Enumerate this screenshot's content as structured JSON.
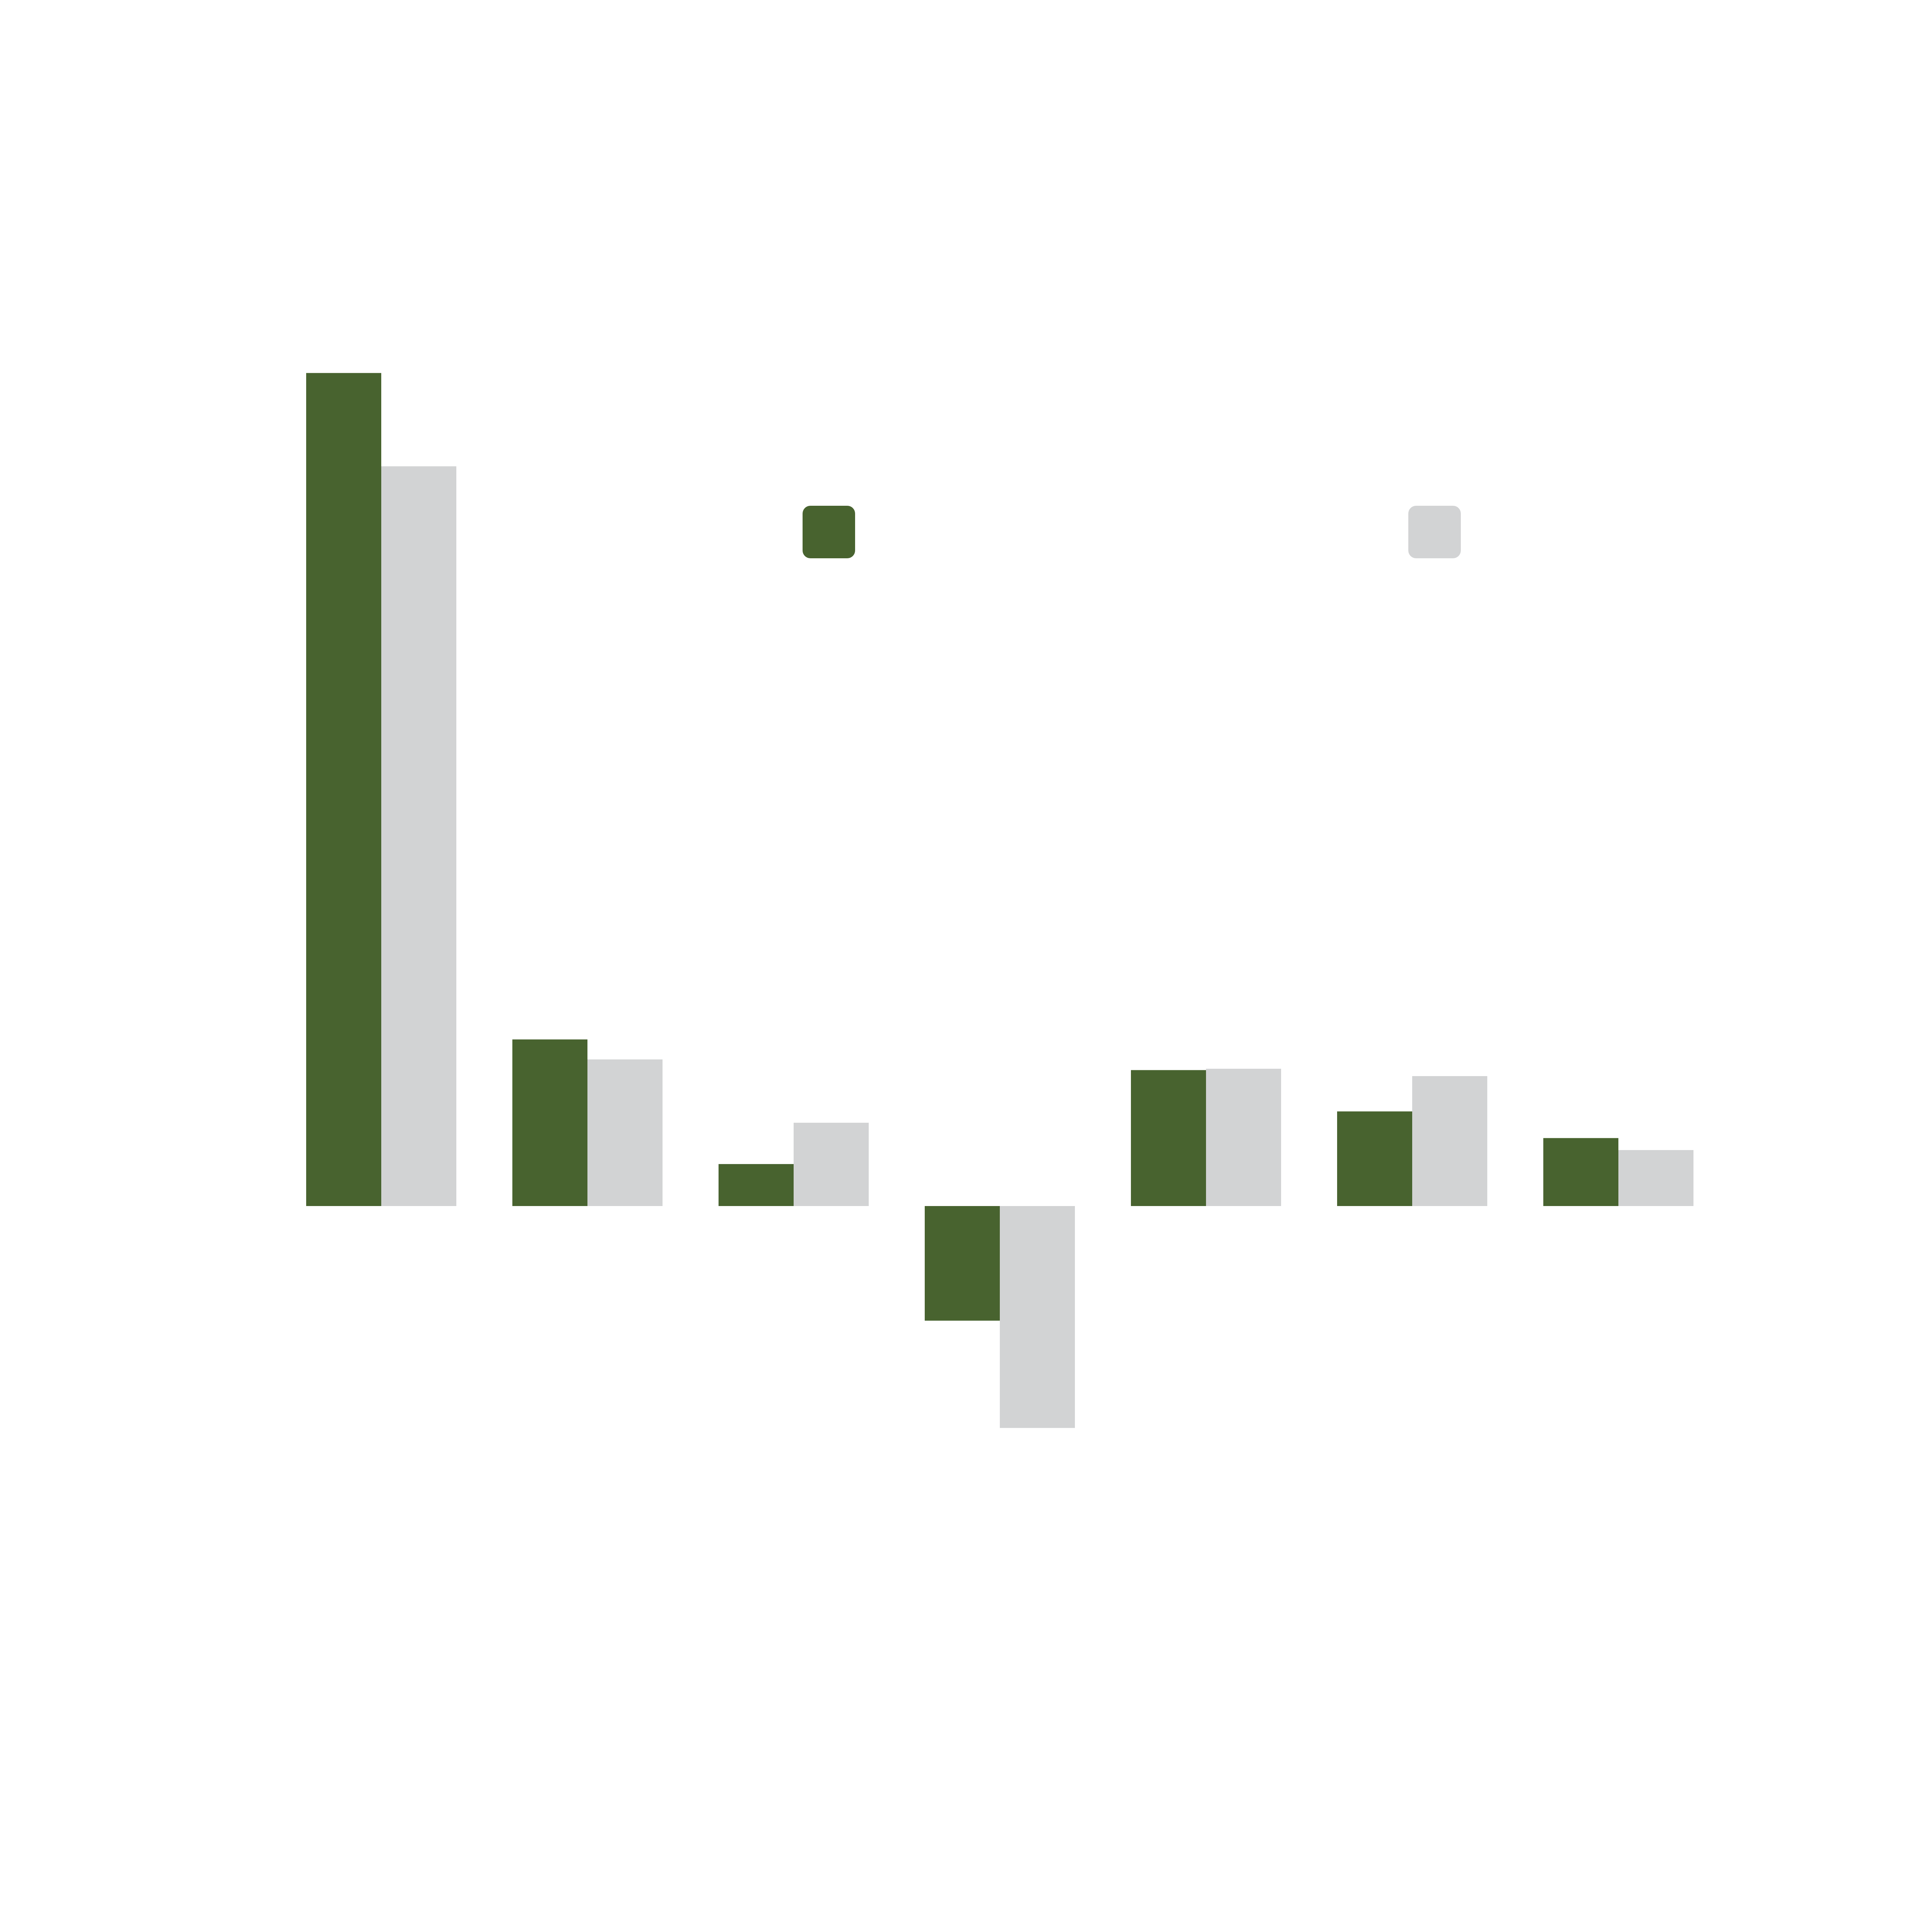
{
  "chart_data": {
    "type": "bar",
    "title": "",
    "xlabel": "",
    "ylabel": "",
    "categories": [
      "",
      "",
      "",
      "",
      "",
      "",
      ""
    ],
    "ylim": [
      -4.2,
      13.5
    ],
    "grid": false,
    "legend": "top",
    "series": [
      {
        "name": "",
        "color": "#48632F",
        "values": [
          12.5,
          2.5,
          0.63,
          -1.72,
          2.04,
          1.42,
          1.02
        ]
      },
      {
        "name": "",
        "color": "#D2D3D4",
        "values": [
          11.1,
          2.2,
          1.25,
          -3.33,
          2.06,
          1.95,
          0.84
        ]
      }
    ]
  }
}
